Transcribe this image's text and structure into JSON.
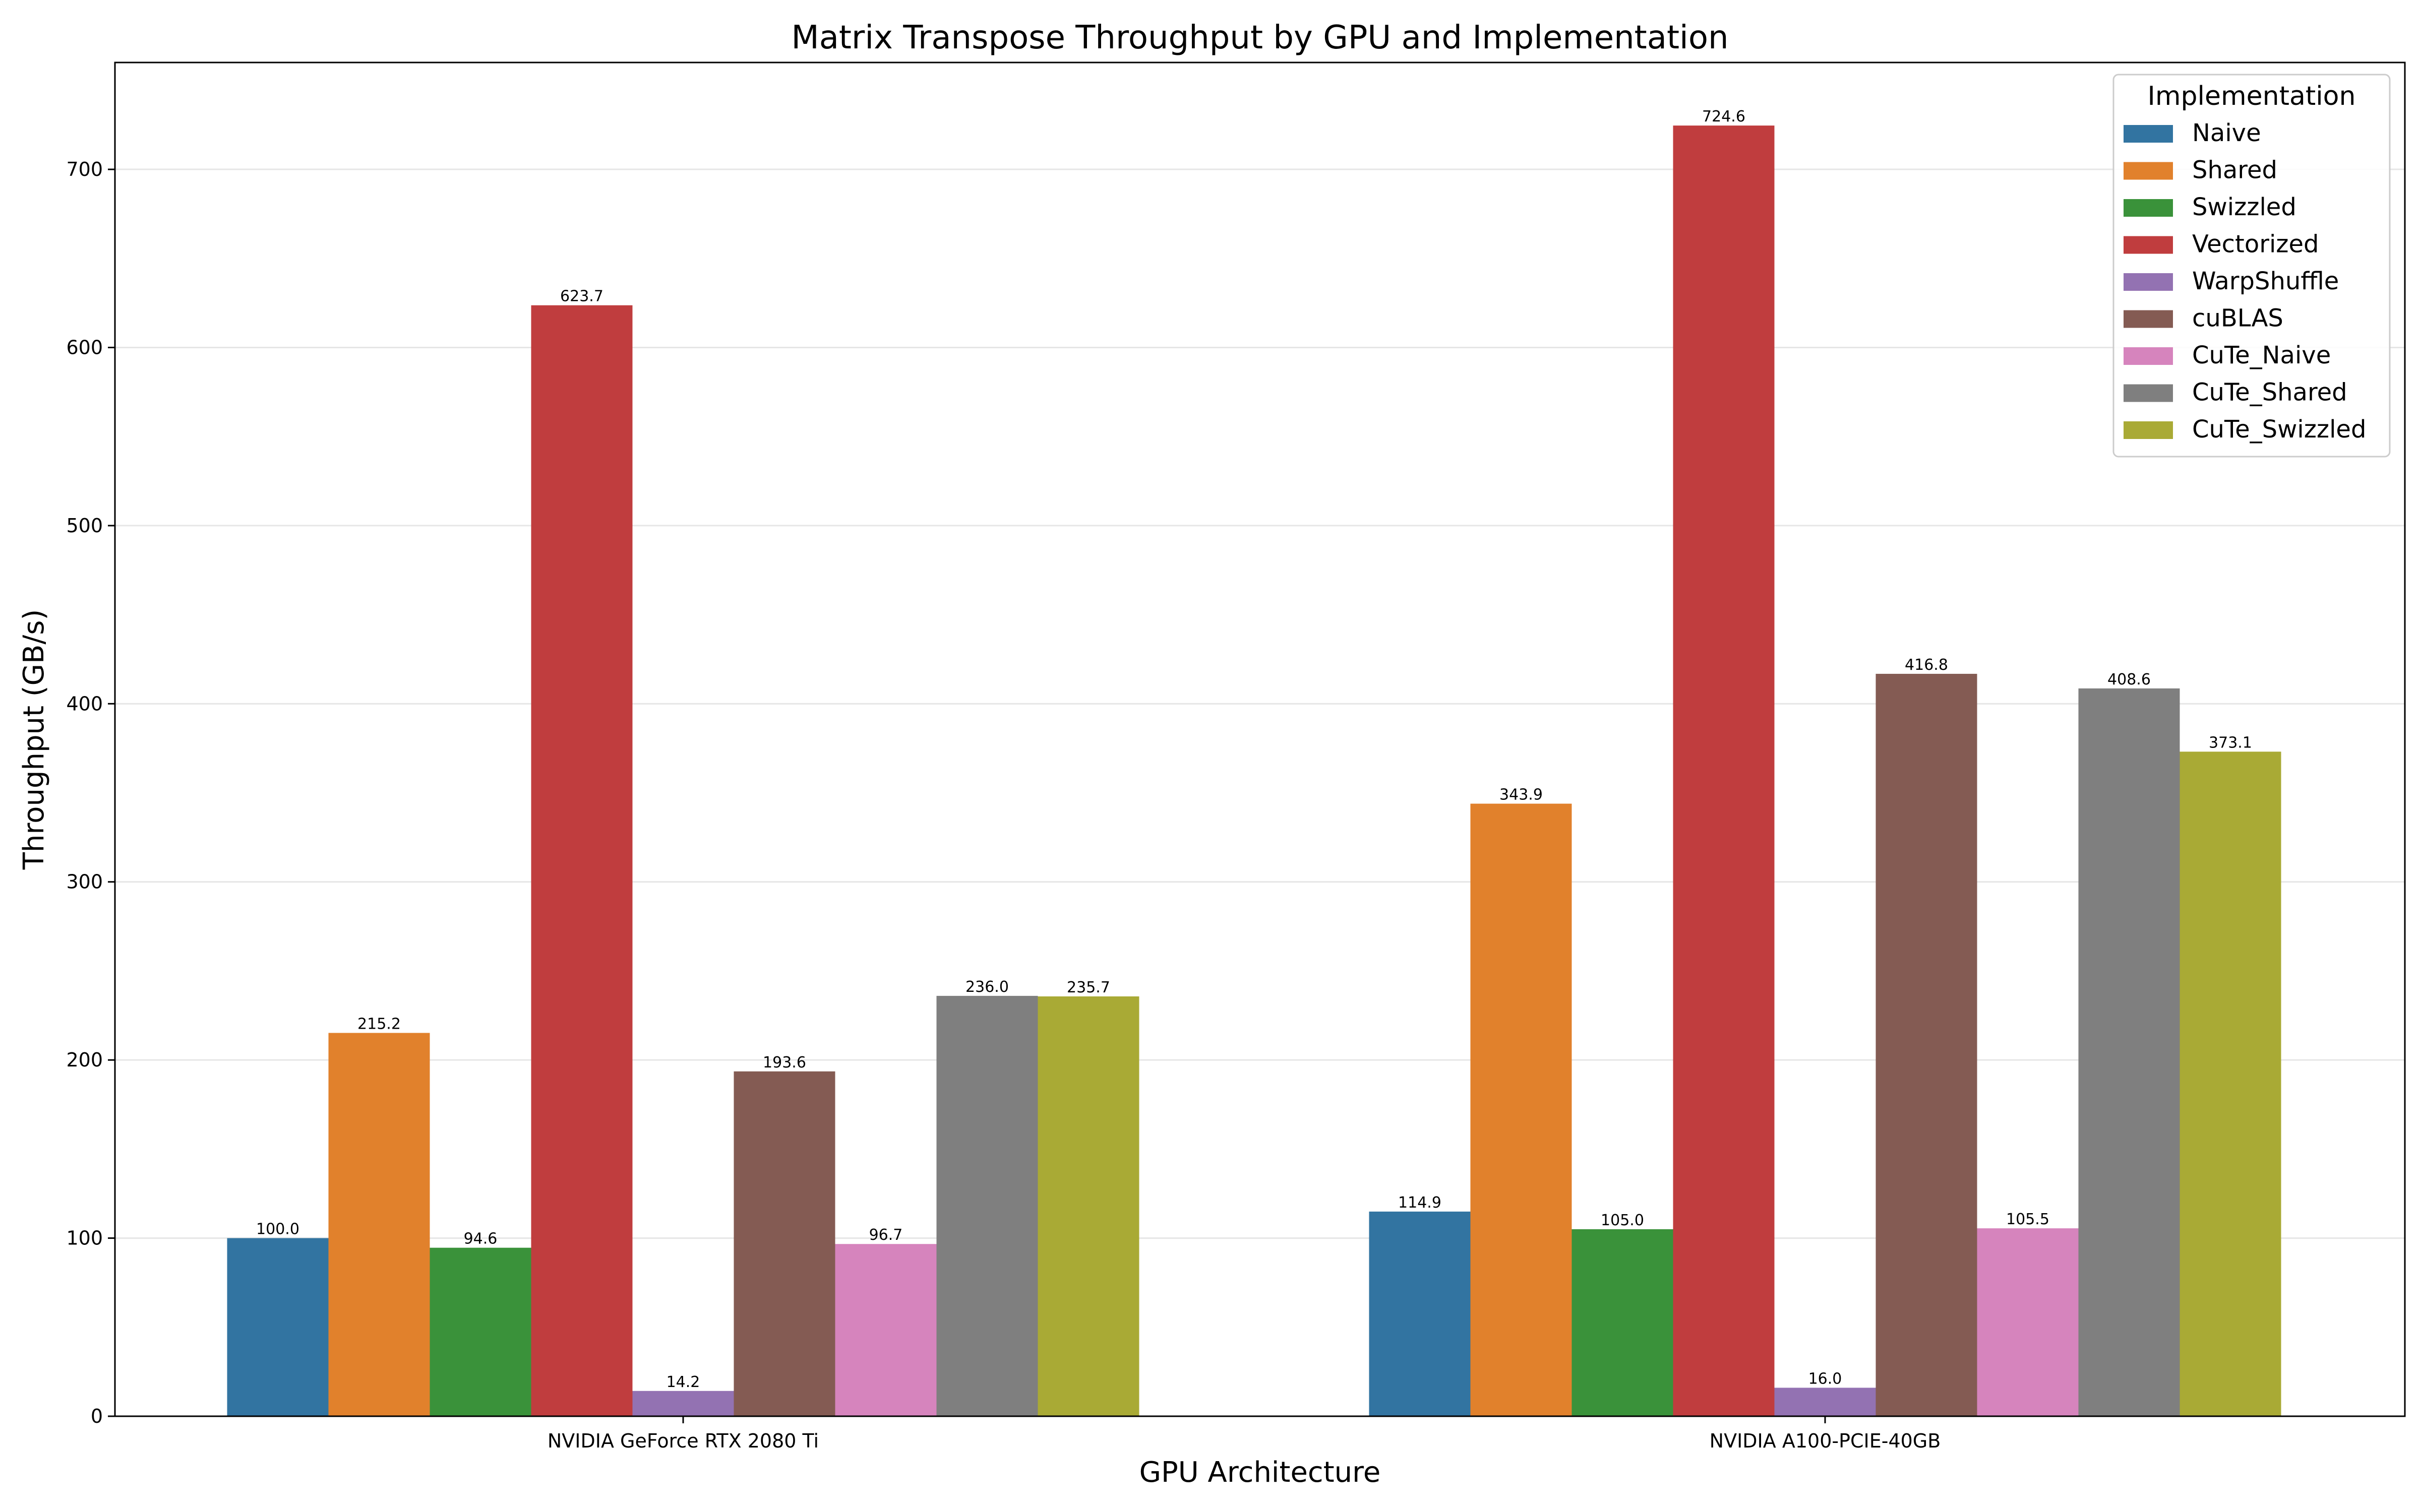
{
  "chart_data": {
    "type": "bar",
    "title": "Matrix Transpose Throughput by GPU and Implementation",
    "xlabel": "GPU Architecture",
    "ylabel": "Throughput (GB/s)",
    "categories": [
      "NVIDIA GeForce RTX 2080 Ti",
      "NVIDIA A100-PCIE-40GB"
    ],
    "ylim": [
      0,
      760
    ],
    "yticks": [
      0,
      100,
      200,
      300,
      400,
      500,
      600,
      700
    ],
    "grid": "y-horizontal",
    "legend": {
      "title": "Implementation",
      "placement": "top-right"
    },
    "series": [
      {
        "name": "Naive",
        "color": "#3274a1",
        "values": [
          100.0,
          114.9
        ],
        "labels": [
          "100.0",
          "114.9"
        ]
      },
      {
        "name": "Shared",
        "color": "#e1812c",
        "values": [
          215.2,
          343.9
        ],
        "labels": [
          "215.2",
          "343.9"
        ]
      },
      {
        "name": "Swizzled",
        "color": "#3a923a",
        "values": [
          94.6,
          105.0
        ],
        "labels": [
          "94.6",
          "105.0"
        ]
      },
      {
        "name": "Vectorized",
        "color": "#c03d3e",
        "values": [
          623.7,
          724.6
        ],
        "labels": [
          "623.7",
          "724.6"
        ]
      },
      {
        "name": "WarpShuffle",
        "color": "#9372b2",
        "values": [
          14.2,
          16.0
        ],
        "labels": [
          "14.2",
          "16.0"
        ]
      },
      {
        "name": "cuBLAS",
        "color": "#845b53",
        "values": [
          193.6,
          416.8
        ],
        "labels": [
          "193.6",
          "416.8"
        ]
      },
      {
        "name": "CuTe_Naive",
        "color": "#d684bd",
        "values": [
          96.7,
          105.5
        ],
        "labels": [
          "96.7",
          "105.5"
        ]
      },
      {
        "name": "CuTe_Shared",
        "color": "#7f7f7f",
        "values": [
          236.0,
          408.6
        ],
        "labels": [
          "236.0",
          "408.6"
        ]
      },
      {
        "name": "CuTe_Swizzled",
        "color": "#a9aa35",
        "values": [
          235.7,
          373.1
        ],
        "labels": [
          "235.7",
          "373.1"
        ]
      }
    ]
  }
}
